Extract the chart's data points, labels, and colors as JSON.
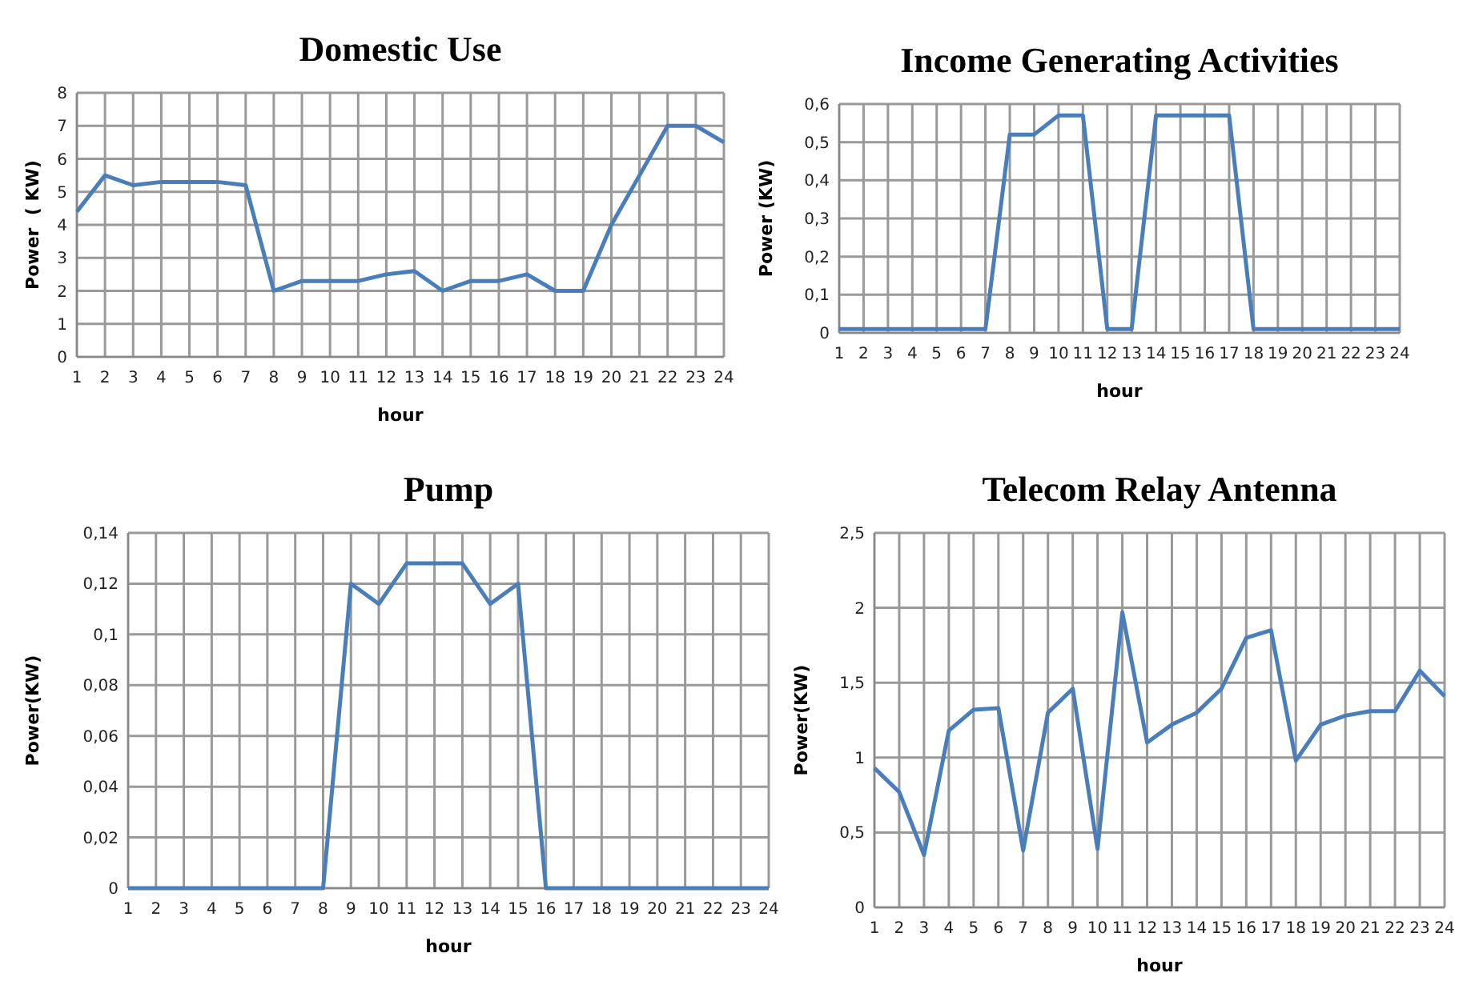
{
  "chart_data": [
    {
      "type": "line",
      "title": "Domestic Use",
      "xlabel": "hour",
      "ylabel": "Power  ( KW)",
      "x": [
        1,
        2,
        3,
        4,
        5,
        6,
        7,
        8,
        9,
        10,
        11,
        12,
        13,
        14,
        15,
        16,
        17,
        18,
        19,
        20,
        21,
        22,
        23,
        24
      ],
      "xlim": [
        1,
        24
      ],
      "xticks": [
        1,
        2,
        3,
        4,
        5,
        6,
        7,
        8,
        9,
        10,
        11,
        12,
        13,
        14,
        15,
        16,
        17,
        18,
        19,
        20,
        21,
        22,
        23,
        24
      ],
      "ylim": [
        0,
        8
      ],
      "yticks": [
        0,
        1,
        2,
        3,
        4,
        5,
        6,
        7,
        8
      ],
      "grid": true,
      "series": [
        {
          "color": "#4a7ebb",
          "values": [
            4.4,
            5.5,
            5.2,
            5.3,
            5.3,
            5.3,
            5.2,
            2.0,
            2.3,
            2.3,
            2.3,
            2.5,
            2.6,
            2.0,
            2.3,
            2.3,
            2.5,
            2.0,
            2.0,
            4.0,
            5.5,
            7.0,
            7.0,
            6.5
          ]
        }
      ]
    },
    {
      "type": "line",
      "title": "Income Generating Activities",
      "xlabel": "hour",
      "ylabel": "Power (KW)",
      "x": [
        1,
        2,
        3,
        4,
        5,
        6,
        7,
        8,
        9,
        10,
        11,
        12,
        13,
        14,
        15,
        16,
        17,
        18,
        19,
        20,
        21,
        22,
        23,
        24
      ],
      "xlim": [
        1,
        24
      ],
      "xticks": [
        1,
        2,
        3,
        4,
        5,
        6,
        7,
        8,
        9,
        10,
        11,
        12,
        13,
        14,
        15,
        16,
        17,
        18,
        19,
        20,
        21,
        22,
        23,
        24
      ],
      "ylim": [
        0,
        0.6
      ],
      "yticks": [
        0,
        {
          "value": 0.1,
          "label": "0,1"
        },
        {
          "value": 0.2,
          "label": "0,2"
        },
        {
          "value": 0.3,
          "label": "0,3"
        },
        {
          "value": 0.4,
          "label": "0,4"
        },
        {
          "value": 0.5,
          "label": "0,5"
        },
        {
          "value": 0.6,
          "label": "0,6"
        }
      ],
      "grid": true,
      "series": [
        {
          "color": "#4a7ebb",
          "values": [
            0.01,
            0.01,
            0.01,
            0.01,
            0.01,
            0.01,
            0.01,
            0.52,
            0.52,
            0.57,
            0.57,
            0.01,
            0.01,
            0.57,
            0.57,
            0.57,
            0.57,
            0.01,
            0.01,
            0.01,
            0.01,
            0.01,
            0.01,
            0.01
          ]
        }
      ]
    },
    {
      "type": "line",
      "title": "Pump",
      "xlabel": "hour",
      "ylabel": "Power(KW)",
      "x": [
        1,
        2,
        3,
        4,
        5,
        6,
        7,
        8,
        9,
        10,
        11,
        12,
        13,
        14,
        15,
        16,
        17,
        18,
        19,
        20,
        21,
        22,
        23,
        24
      ],
      "xlim": [
        1,
        24
      ],
      "xticks": [
        1,
        2,
        3,
        4,
        5,
        6,
        7,
        8,
        9,
        10,
        11,
        12,
        13,
        14,
        15,
        16,
        17,
        18,
        19,
        20,
        21,
        22,
        23,
        24
      ],
      "ylim": [
        0,
        0.14
      ],
      "yticks": [
        0,
        {
          "value": 0.02,
          "label": "0,02"
        },
        {
          "value": 0.04,
          "label": "0,04"
        },
        {
          "value": 0.06,
          "label": "0,06"
        },
        {
          "value": 0.08,
          "label": "0,08"
        },
        {
          "value": 0.1,
          "label": "0,1"
        },
        {
          "value": 0.12,
          "label": "0,12"
        },
        {
          "value": 0.14,
          "label": "0,14"
        }
      ],
      "grid": true,
      "series": [
        {
          "color": "#4a7ebb",
          "values": [
            0,
            0,
            0,
            0,
            0,
            0,
            0,
            0,
            0.12,
            0.112,
            0.128,
            0.128,
            0.128,
            0.112,
            0.12,
            0,
            0,
            0,
            0,
            0,
            0,
            0,
            0,
            0
          ]
        }
      ]
    },
    {
      "type": "line",
      "title": "Telecom Relay Antenna",
      "xlabel": "hour",
      "ylabel": "Power(KW)",
      "x": [
        1,
        2,
        3,
        4,
        5,
        6,
        7,
        8,
        9,
        10,
        11,
        12,
        13,
        14,
        15,
        16,
        17,
        18,
        19,
        20,
        21,
        22,
        23,
        24
      ],
      "xlim": [
        1,
        24
      ],
      "xticks": [
        1,
        2,
        3,
        4,
        5,
        6,
        7,
        8,
        9,
        10,
        11,
        12,
        13,
        14,
        15,
        16,
        17,
        18,
        19,
        20,
        21,
        22,
        23,
        24
      ],
      "ylim": [
        0,
        2.5
      ],
      "yticks": [
        0,
        {
          "value": 0.5,
          "label": "0,5"
        },
        1,
        {
          "value": 1.5,
          "label": "1,5"
        },
        2,
        {
          "value": 2.5,
          "label": "2,5"
        }
      ],
      "grid": true,
      "series": [
        {
          "color": "#4a7ebb",
          "values": [
            0.93,
            0.77,
            0.35,
            1.18,
            1.32,
            1.33,
            0.38,
            1.3,
            1.46,
            0.39,
            1.97,
            1.1,
            1.22,
            1.3,
            1.46,
            1.8,
            1.85,
            0.98,
            1.22,
            1.28,
            1.31,
            1.31,
            1.58,
            1.41
          ]
        }
      ]
    }
  ]
}
